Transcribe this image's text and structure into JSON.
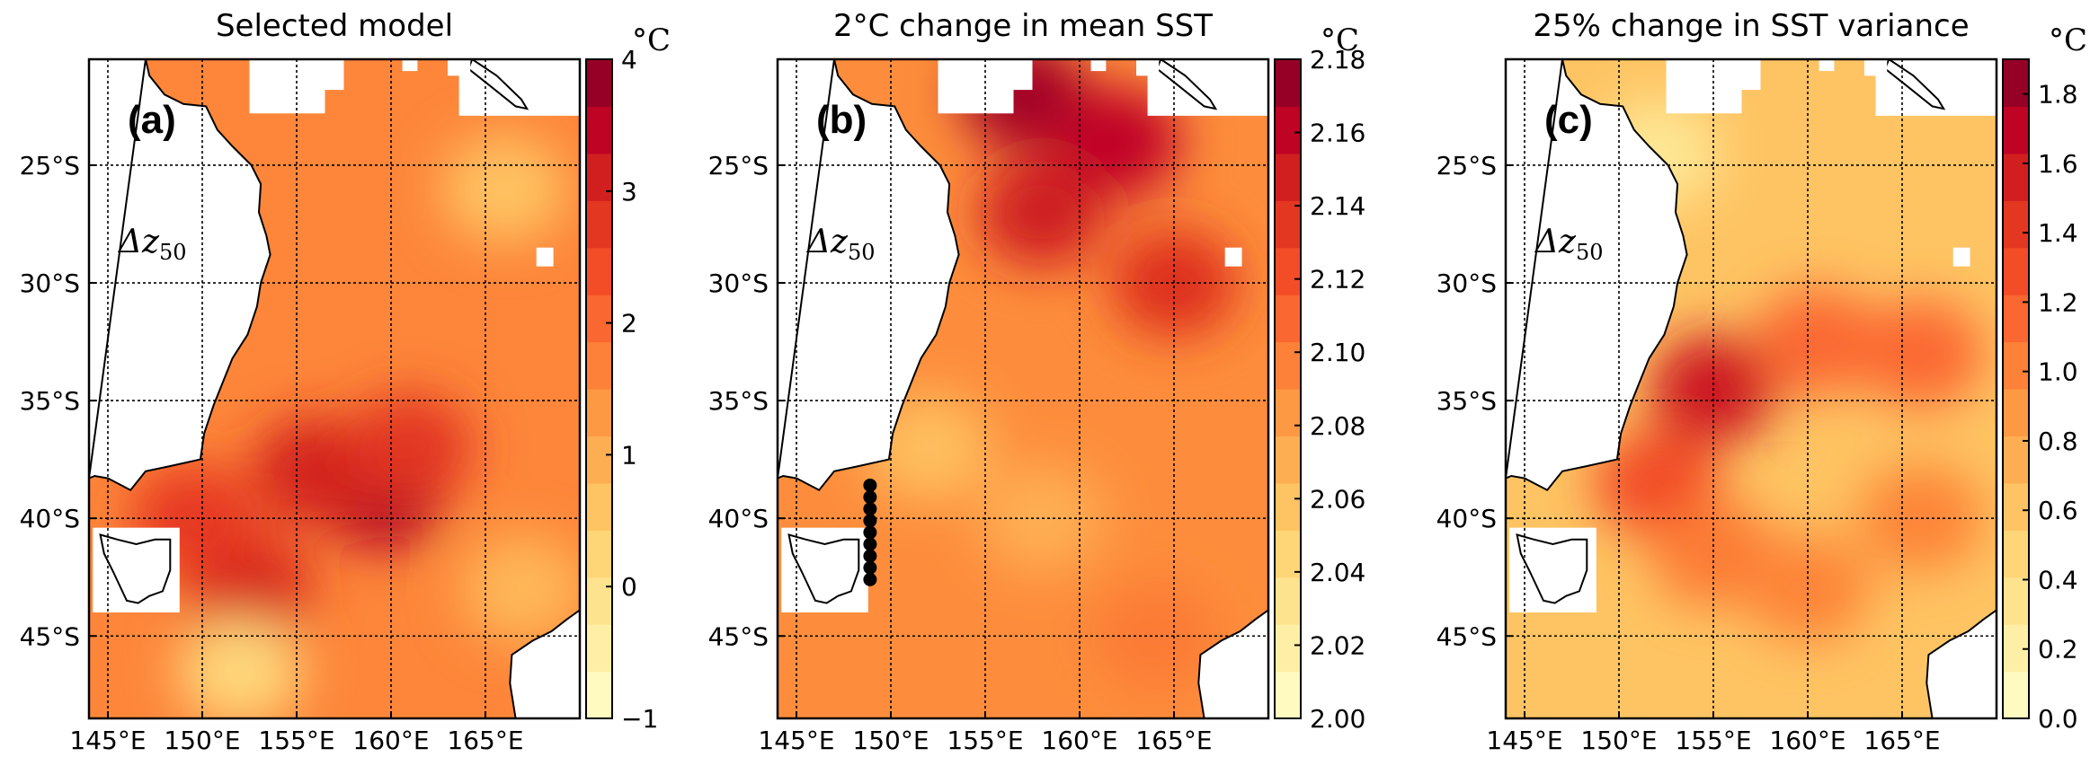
{
  "figure": {
    "panels": [
      {
        "id": "a",
        "title": "Selected model",
        "letter": "(a)",
        "annotation": "Δz",
        "annotation_sub": "50",
        "unit": "°C",
        "colorbar": {
          "min": -1,
          "max": 4,
          "ticks": [
            "4",
            "3",
            "2",
            "1",
            "0",
            "−1"
          ],
          "tick_values": [
            4,
            3,
            2,
            1,
            0,
            -1
          ]
        },
        "hotspots": [
          {
            "lon": 159.5,
            "lat": -39.0,
            "value": 3.6
          },
          {
            "lon": 156.0,
            "lat": -38.0,
            "value": 3.1
          },
          {
            "lon": 152.5,
            "lat": -43.0,
            "value": 3.0
          },
          {
            "lon": 161.0,
            "lat": -37.0,
            "value": 2.8
          },
          {
            "lon": 149.5,
            "lat": -40.0,
            "value": 2.7
          },
          {
            "lon": 166.0,
            "lat": -26.0,
            "value": 0.6
          },
          {
            "lon": 152.0,
            "lat": -46.5,
            "value": 0.2
          },
          {
            "lon": 167.0,
            "lat": -43.0,
            "value": 0.8
          }
        ],
        "background_value": 1.6,
        "stations": false
      },
      {
        "id": "b",
        "title": "2°C change in mean SST",
        "letter": "(b)",
        "annotation": "Δz",
        "annotation_sub": "50",
        "unit": "°C",
        "colorbar": {
          "min": 2.0,
          "max": 2.18,
          "ticks": [
            "2.18",
            "2.16",
            "2.14",
            "2.12",
            "2.10",
            "2.08",
            "2.06",
            "2.04",
            "2.02",
            "2.00"
          ],
          "tick_values": [
            2.18,
            2.16,
            2.14,
            2.12,
            2.1,
            2.08,
            2.06,
            2.04,
            2.02,
            2.0
          ]
        },
        "hotspots": [
          {
            "lon": 157.0,
            "lat": -22.0,
            "value": 2.17
          },
          {
            "lon": 162.0,
            "lat": -24.0,
            "value": 2.16
          },
          {
            "lon": 158.0,
            "lat": -27.0,
            "value": 2.15
          },
          {
            "lon": 165.0,
            "lat": -30.0,
            "value": 2.14
          },
          {
            "lon": 152.0,
            "lat": -37.0,
            "value": 2.06
          },
          {
            "lon": 158.0,
            "lat": -40.0,
            "value": 2.07
          },
          {
            "lon": 164.0,
            "lat": -45.0,
            "value": 2.1
          }
        ],
        "background_value": 2.09,
        "stations": true
      },
      {
        "id": "c",
        "title": "25% change in SST variance",
        "letter": "(c)",
        "annotation": "Δz",
        "annotation_sub": "50",
        "unit": "°C",
        "colorbar": {
          "min": 0.0,
          "max": 1.9,
          "ticks": [
            "1.8",
            "1.6",
            "1.4",
            "1.2",
            "1.0",
            "0.8",
            "0.6",
            "0.4",
            "0.2",
            "0.0"
          ],
          "tick_values": [
            1.8,
            1.6,
            1.4,
            1.2,
            1.0,
            0.8,
            0.6,
            0.4,
            0.2,
            0.0
          ]
        },
        "hotspots": [
          {
            "lon": 155.0,
            "lat": -34.5,
            "value": 1.6
          },
          {
            "lon": 152.0,
            "lat": -38.5,
            "value": 1.3
          },
          {
            "lon": 160.5,
            "lat": -32.5,
            "value": 1.15
          },
          {
            "lon": 166.0,
            "lat": -33.0,
            "value": 1.15
          },
          {
            "lon": 155.0,
            "lat": -41.5,
            "value": 1.05
          },
          {
            "lon": 160.0,
            "lat": -43.0,
            "value": 1.0
          },
          {
            "lon": 166.0,
            "lat": -40.0,
            "value": 1.0
          },
          {
            "lon": 152.0,
            "lat": -24.5,
            "value": 0.3
          }
        ],
        "background_value": 0.6,
        "stations": false
      }
    ],
    "x_ticks": [
      "145°E",
      "150°E",
      "155°E",
      "160°E",
      "165°E"
    ],
    "x_tick_values": [
      145,
      150,
      155,
      160,
      165
    ],
    "y_ticks": [
      "25°S",
      "30°S",
      "35°S",
      "40°S",
      "45°S"
    ],
    "y_tick_values": [
      -25,
      -30,
      -35,
      -40,
      -45
    ],
    "extent": {
      "lon_min": 144,
      "lon_max": 170,
      "lat_min": -48.5,
      "lat_max": -20.5
    },
    "colormap": [
      "#ffffcc",
      "#fff0a8",
      "#fee087",
      "#fec967",
      "#feac50",
      "#fd8d3c",
      "#fc6a31",
      "#f04525",
      "#d7281d",
      "#bd0026",
      "#800026"
    ]
  }
}
